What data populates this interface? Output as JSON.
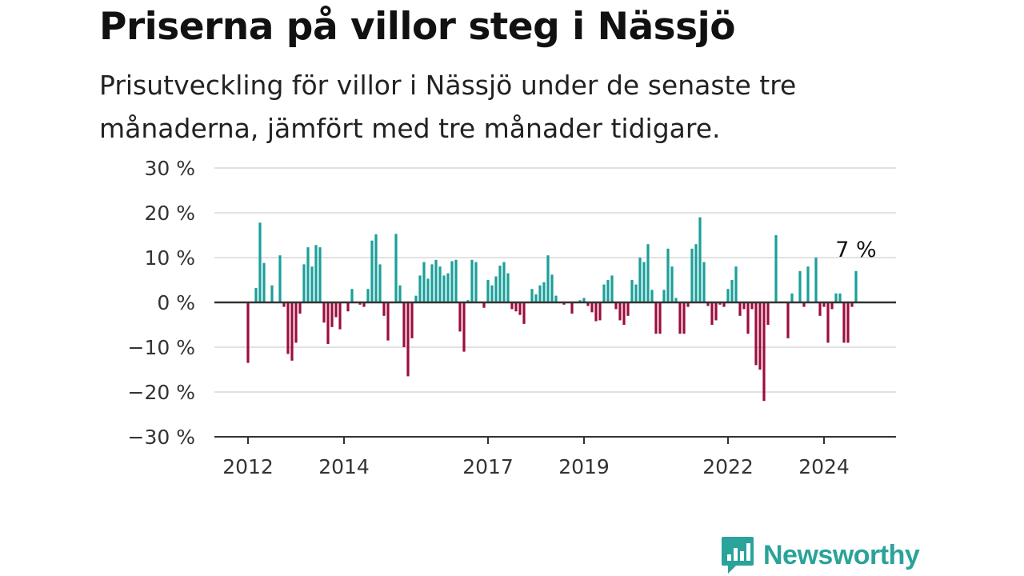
{
  "title": "Priserna på villor steg i Nässjö",
  "subtitle": "Prisutveckling för villor i Nässjö under de senaste tre månaderna, jämfört med tre månader tidigare.",
  "brand": {
    "name": "Newsworthy",
    "logo_icon": "bar-chart-speech-bubble-icon"
  },
  "colors": {
    "positive": "#1a9f9a",
    "negative": "#9b0d3f",
    "grid": "#d9d9d9",
    "axis": "#333333",
    "brand": "#2aa39a"
  },
  "chart_data": {
    "type": "bar",
    "title": "Priserna på villor steg i Nässjö",
    "subtitle": "Prisutveckling för villor i Nässjö under de senaste tre månaderna, jämfört med tre månader tidigare.",
    "ylim": [
      -30,
      30
    ],
    "yticks": [
      30,
      20,
      10,
      0,
      -10,
      -20,
      -30
    ],
    "ytick_labels": [
      "30 %",
      "20 %",
      "10 %",
      "0 %",
      "−10 %",
      "−20 %",
      "−30 %"
    ],
    "xtick_labels": [
      "2012",
      "2014",
      "2017",
      "2019",
      "2022",
      "2024"
    ],
    "grid": true,
    "x_start": "2012-01",
    "x_end": "2024-08",
    "annotation": {
      "text": "7 %",
      "target": "last"
    },
    "values": [
      -13.5,
      0,
      3.2,
      17.8,
      8.8,
      0,
      3.8,
      0,
      10.5,
      -1,
      -11.5,
      -13,
      -9,
      -2.5,
      8.5,
      12.3,
      8,
      12.8,
      12.3,
      -4.5,
      -9.3,
      -5.5,
      -3.3,
      -6,
      0,
      -2,
      3,
      0,
      -0.5,
      -1,
      3,
      13.8,
      15.2,
      8.5,
      -3,
      -8.5,
      0,
      15.3,
      3.8,
      -10,
      -16.5,
      -8,
      1.5,
      6,
      9,
      5.3,
      8.5,
      9.5,
      8,
      6,
      6.5,
      9.2,
      9.5,
      -6.5,
      -11,
      0.5,
      9.5,
      9,
      0,
      -1.2,
      5,
      3.8,
      5.8,
      8.2,
      9,
      6.5,
      -1.5,
      -2,
      -2.8,
      -4.8,
      0,
      3,
      1.8,
      3.8,
      4.5,
      10.5,
      6.2,
      1.5,
      0,
      -0.5,
      0,
      -2.5,
      0.2,
      0.5,
      1,
      -0.8,
      -2.2,
      -4.2,
      -4,
      4,
      5,
      6,
      -1.5,
      -4,
      -5,
      -3,
      5,
      4,
      10,
      9,
      13,
      2.8,
      -7,
      -7,
      2.8,
      12,
      8,
      1,
      -7,
      -7,
      -1,
      12,
      13,
      19,
      9,
      -0.8,
      -5,
      -4,
      -0.5,
      -1,
      3,
      5,
      8,
      -3,
      -1.5,
      -7,
      -1.5,
      -14,
      -15,
      -22,
      -5,
      0,
      15,
      0,
      0,
      -8,
      2,
      0,
      7,
      -1,
      8,
      0,
      10,
      -3,
      -1,
      -9,
      -1.5,
      2,
      2,
      -9,
      -9,
      -1,
      7
    ]
  }
}
